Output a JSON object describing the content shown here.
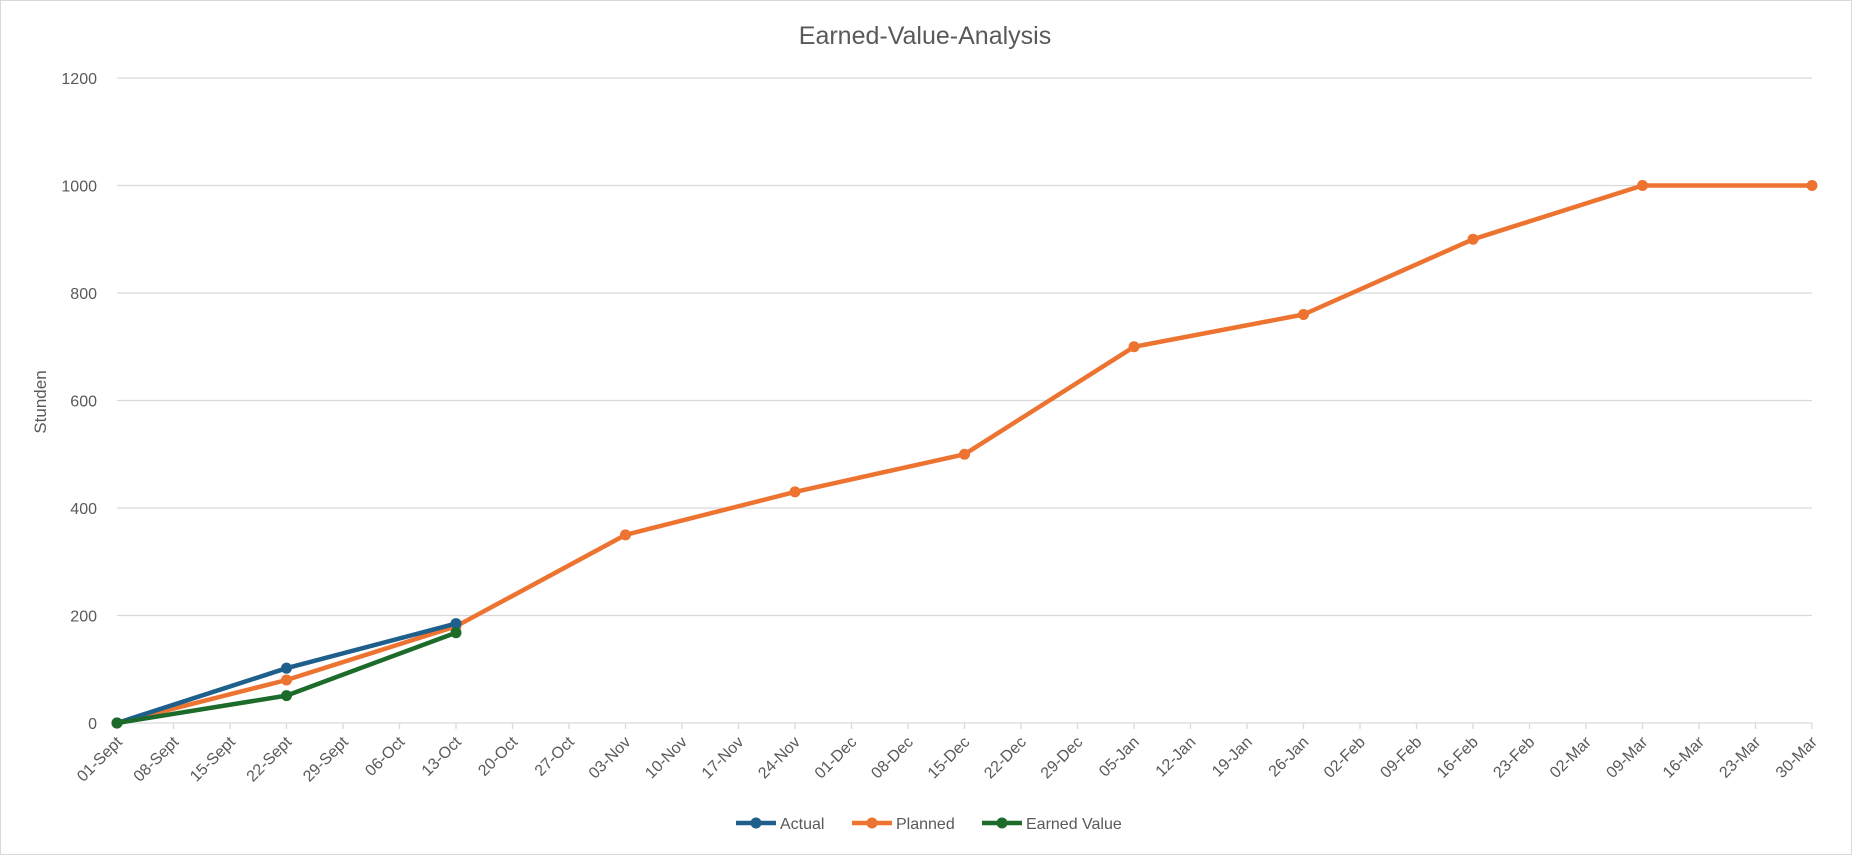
{
  "chart_data": {
    "type": "line",
    "title": "Earned-Value-Analysis",
    "xlabel": "",
    "ylabel": "Stunden",
    "ylim": [
      0,
      1200
    ],
    "yticks": [
      0,
      200,
      400,
      600,
      800,
      1000,
      1200
    ],
    "grid": "horizontal",
    "legend_position": "bottom",
    "categories": [
      "01-Sept",
      "08-Sept",
      "15-Sept",
      "22-Sept",
      "29-Sept",
      "06-Oct",
      "13-Oct",
      "20-Oct",
      "27-Oct",
      "03-Nov",
      "10-Nov",
      "17-Nov",
      "24-Nov",
      "01-Dec",
      "08-Dec",
      "15-Dec",
      "22-Dec",
      "29-Dec",
      "05-Jan",
      "12-Jan",
      "19-Jan",
      "26-Jan",
      "02-Feb",
      "09-Feb",
      "16-Feb",
      "23-Feb",
      "02-Mar",
      "09-Mar",
      "16-Mar",
      "23-Mar",
      "30-Mar"
    ],
    "series": [
      {
        "name": "Actual",
        "color": "#1f5f8b",
        "points": [
          {
            "x": "01-Sept",
            "y": 0
          },
          {
            "x": "22-Sept",
            "y": 102
          },
          {
            "x": "13-Oct",
            "y": 185
          }
        ]
      },
      {
        "name": "Planned",
        "color": "#ed7331",
        "points": [
          {
            "x": "01-Sept",
            "y": 0
          },
          {
            "x": "22-Sept",
            "y": 80
          },
          {
            "x": "13-Oct",
            "y": 180
          },
          {
            "x": "03-Nov",
            "y": 350
          },
          {
            "x": "24-Nov",
            "y": 430
          },
          {
            "x": "15-Dec",
            "y": 500
          },
          {
            "x": "05-Jan",
            "y": 700
          },
          {
            "x": "26-Jan",
            "y": 760
          },
          {
            "x": "16-Feb",
            "y": 900
          },
          {
            "x": "09-Mar",
            "y": 1000
          },
          {
            "x": "30-Mar",
            "y": 1000
          }
        ]
      },
      {
        "name": "Earned Value",
        "color": "#1d6b2a",
        "points": [
          {
            "x": "01-Sept",
            "y": 0
          },
          {
            "x": "22-Sept",
            "y": 51
          },
          {
            "x": "13-Oct",
            "y": 168
          }
        ]
      }
    ]
  }
}
